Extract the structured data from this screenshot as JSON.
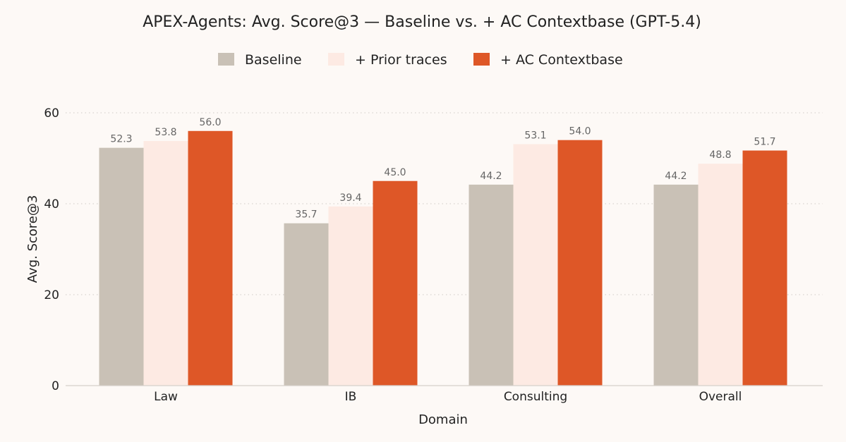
{
  "chart_data": {
    "type": "bar",
    "title": "APEX-Agents: Avg. Score@3 — Baseline vs. + AC Contextbase (GPT-5.4)",
    "xlabel": "Domain",
    "ylabel": "Avg. Score@3",
    "ylim": [
      0,
      60
    ],
    "yticks": [
      0,
      20,
      40,
      60
    ],
    "grid": true,
    "legend_position": "top-center",
    "categories": [
      "Law",
      "IB",
      "Consulting",
      "Overall"
    ],
    "series": [
      {
        "name": "Baseline",
        "color": "#c9c1b6",
        "values": [
          52.3,
          35.7,
          44.2,
          44.2
        ],
        "labels": [
          "52.3",
          "35.7",
          "44.2",
          "44.2"
        ]
      },
      {
        "name": "+ Prior traces",
        "color": "#fdeae3",
        "values": [
          53.8,
          39.4,
          53.1,
          48.8
        ],
        "labels": [
          "53.8",
          "39.4",
          "53.1",
          "48.8"
        ]
      },
      {
        "name": "+ AC Contextbase",
        "color": "#de5727",
        "values": [
          56.0,
          45.0,
          54.0,
          51.7
        ],
        "labels": [
          "56.0",
          "45.0",
          "54.0",
          "51.7"
        ]
      }
    ]
  }
}
